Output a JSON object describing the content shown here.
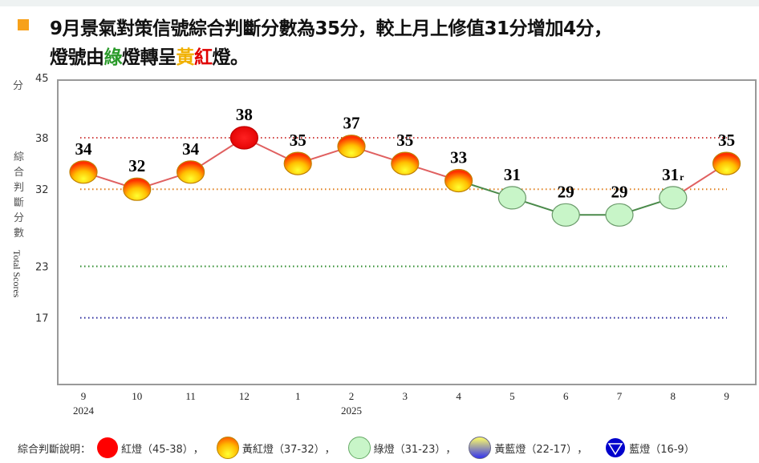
{
  "headline": {
    "line1": "9月景氣對策信號綜合判斷分數為35分，較上月上修值31分增加4分，",
    "line2_parts": [
      "燈號由",
      "綠",
      "燈轉呈",
      "黃",
      "紅",
      "燈。"
    ]
  },
  "colors": {
    "red": "#ff0000",
    "yellow_red": "#f7a000",
    "green": "#c8f5c8",
    "yellow_blue": "#6a6ae0",
    "blue": "#0000cc",
    "bullet": "#f7a11a"
  },
  "chart_data": {
    "type": "line",
    "ylabel_unit": "分",
    "ylabel_zh": "綜合判斷分數",
    "ylabel_en": "Total Scores",
    "yticks": [
      45,
      38,
      32,
      23,
      17
    ],
    "ylim": [
      9,
      45
    ],
    "categories": [
      "9",
      "10",
      "11",
      "12",
      "1",
      "2",
      "3",
      "4",
      "5",
      "6",
      "7",
      "8",
      "9"
    ],
    "year_labels": [
      {
        "index": 0,
        "label": "2024"
      },
      {
        "index": 5,
        "label": "2025"
      }
    ],
    "values": [
      34,
      32,
      34,
      38,
      35,
      37,
      35,
      33,
      31,
      29,
      29,
      31,
      35
    ],
    "value_labels": [
      "34",
      "32",
      "34",
      "38",
      "35",
      "37",
      "35",
      "33",
      "31",
      "29",
      "29",
      "31",
      "35"
    ],
    "revised_marks": [
      "",
      "",
      "",
      "",
      "",
      "",
      "",
      "",
      "",
      "",
      "",
      "r",
      ""
    ],
    "signals": [
      "yellow-red",
      "yellow-red",
      "yellow-red",
      "red",
      "yellow-red",
      "yellow-red",
      "yellow-red",
      "yellow-red",
      "green",
      "green",
      "green",
      "green",
      "yellow-red"
    ],
    "reference_lines": [
      {
        "value": 38,
        "color": "#d04040"
      },
      {
        "value": 32,
        "color": "#e08020"
      },
      {
        "value": 23,
        "color": "#2a8a2a"
      },
      {
        "value": 17,
        "color": "#3030a0"
      }
    ]
  },
  "legend": {
    "title": "綜合判斷說明：",
    "items": [
      {
        "label": "紅燈（45-38）",
        "sep": "，",
        "icon": "red-light-icon"
      },
      {
        "label": "黃紅燈（37-32）",
        "sep": "，",
        "icon": "yellow-red-light-icon"
      },
      {
        "label": "綠燈（31-23）",
        "sep": "，",
        "icon": "green-light-icon"
      },
      {
        "label": "黃藍燈（22-17）",
        "sep": "，",
        "icon": "yellow-blue-light-icon"
      },
      {
        "label": "藍燈（16-9）",
        "sep": "",
        "icon": "blue-light-icon"
      }
    ]
  }
}
